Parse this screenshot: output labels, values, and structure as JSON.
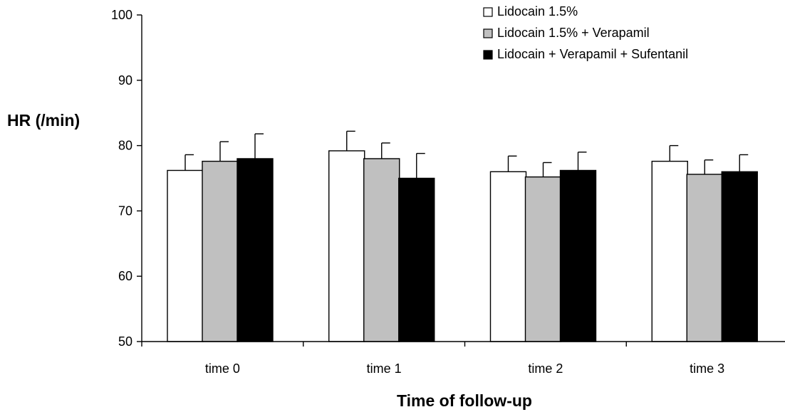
{
  "chart_data": {
    "type": "bar",
    "xlabel": "Time of follow-up",
    "ylabel": "HR (/min)",
    "ylim": [
      50,
      100
    ],
    "yticks": [
      50,
      60,
      70,
      80,
      90,
      100
    ],
    "grid": false,
    "legend_position": "top-right",
    "categories": [
      "time 0",
      "time 1",
      "time 2",
      "time 3"
    ],
    "series": [
      {
        "name": "Lidocain 1.5%",
        "color": "#ffffff",
        "values": [
          76.2,
          79.2,
          76.0,
          77.6
        ],
        "error": [
          2.4,
          3.0,
          2.4,
          2.4
        ]
      },
      {
        "name": "Lidocain 1.5% + Verapamil",
        "color": "#c0c0c0",
        "values": [
          77.6,
          78.0,
          75.2,
          75.6
        ],
        "error": [
          3.0,
          2.4,
          2.2,
          2.2
        ]
      },
      {
        "name": "Lidocain + Verapamil + Sufentanil",
        "color": "#000000",
        "values": [
          78.0,
          75.0,
          76.2,
          76.0
        ],
        "error": [
          3.8,
          3.8,
          2.8,
          2.6
        ]
      }
    ]
  }
}
